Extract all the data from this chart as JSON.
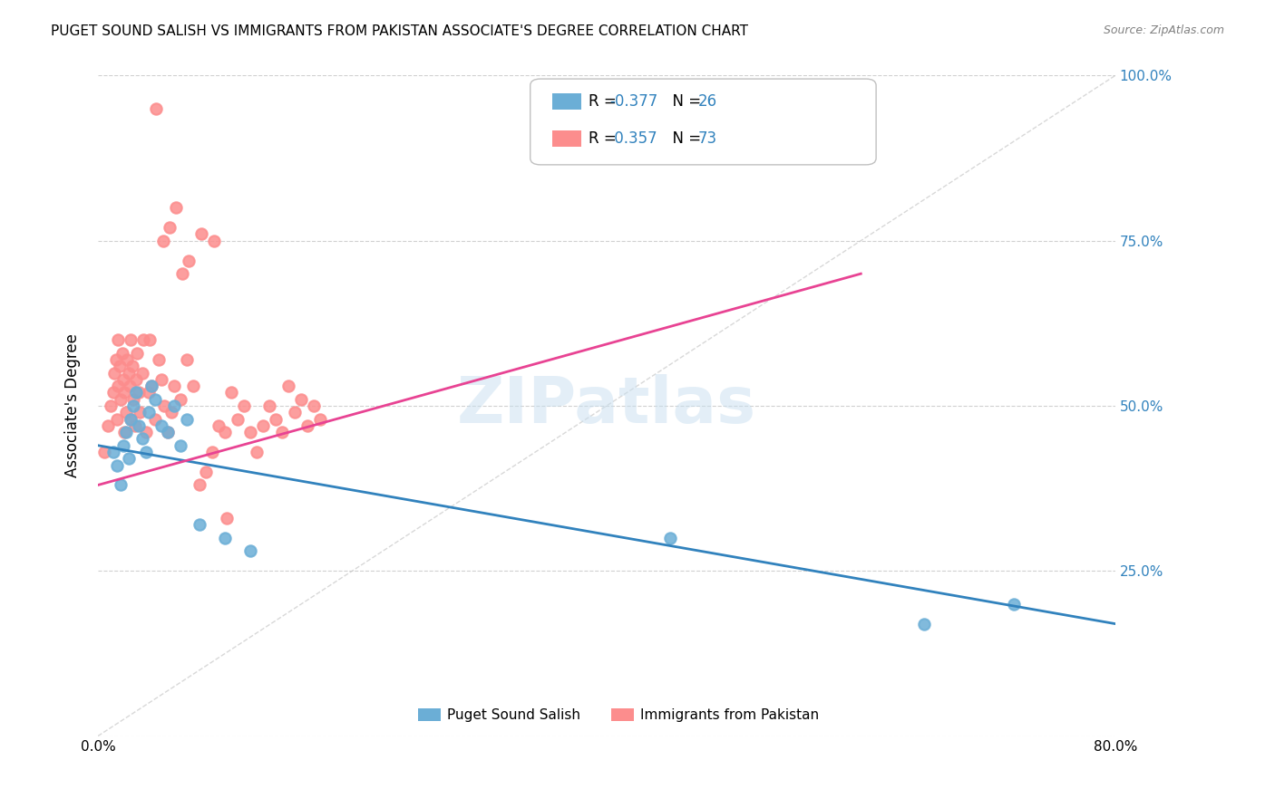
{
  "title": "PUGET SOUND SALISH VS IMMIGRANTS FROM PAKISTAN ASSOCIATE'S DEGREE CORRELATION CHART",
  "source": "Source: ZipAtlas.com",
  "ylabel": "Associate's Degree",
  "xlim": [
    0.0,
    80.0
  ],
  "ylim": [
    0.0,
    100.0
  ],
  "yticks": [
    0,
    25,
    50,
    75,
    100
  ],
  "ytick_labels": [
    "",
    "25.0%",
    "50.0%",
    "75.0%",
    "100.0%"
  ],
  "xticks": [
    0,
    20,
    40,
    60,
    80
  ],
  "xtick_labels": [
    "0.0%",
    "",
    "",
    "",
    "80.0%"
  ],
  "legend_R1": "-0.377",
  "legend_N1": "26",
  "legend_R2": "0.357",
  "legend_N2": "73",
  "blue_color": "#6baed6",
  "pink_color": "#fc8d8d",
  "blue_line_color": "#3182bd",
  "pink_line_color": "#e84393",
  "ref_line_color": "#c8c8c8",
  "grid_color": "#d0d0d0",
  "watermark": "ZIPatlas",
  "blue_scatter_x": [
    1.2,
    1.5,
    1.8,
    2.0,
    2.2,
    2.4,
    2.6,
    2.8,
    3.0,
    3.2,
    3.5,
    3.8,
    4.0,
    4.2,
    4.5,
    5.0,
    5.5,
    6.0,
    6.5,
    7.0,
    8.0,
    10.0,
    12.0,
    45.0,
    65.0,
    72.0
  ],
  "blue_scatter_y": [
    43,
    41,
    38,
    44,
    46,
    42,
    48,
    50,
    52,
    47,
    45,
    43,
    49,
    53,
    51,
    47,
    46,
    50,
    44,
    48,
    32,
    30,
    28,
    30,
    17,
    20
  ],
  "pink_scatter_x": [
    0.5,
    0.8,
    1.0,
    1.2,
    1.3,
    1.4,
    1.5,
    1.55,
    1.6,
    1.7,
    1.8,
    1.9,
    2.0,
    2.05,
    2.1,
    2.2,
    2.3,
    2.4,
    2.5,
    2.55,
    2.6,
    2.7,
    2.8,
    2.9,
    3.0,
    3.1,
    3.2,
    3.3,
    3.5,
    3.6,
    3.8,
    4.0,
    4.2,
    4.5,
    4.8,
    5.0,
    5.2,
    5.5,
    5.8,
    6.0,
    6.5,
    7.0,
    7.5,
    8.0,
    8.5,
    9.0,
    9.5,
    10.0,
    10.5,
    11.0,
    11.5,
    12.0,
    12.5,
    13.0,
    13.5,
    14.0,
    14.5,
    15.0,
    15.5,
    16.0,
    16.5,
    17.0,
    17.5,
    4.1,
    4.6,
    5.1,
    5.6,
    6.1,
    6.6,
    7.1,
    8.1,
    9.1,
    10.1
  ],
  "pink_scatter_y": [
    43,
    47,
    50,
    52,
    55,
    57,
    48,
    60,
    53,
    56,
    51,
    58,
    54,
    46,
    52,
    49,
    57,
    55,
    53,
    60,
    48,
    56,
    51,
    47,
    54,
    58,
    52,
    49,
    55,
    60,
    46,
    52,
    53,
    48,
    57,
    54,
    50,
    46,
    49,
    53,
    51,
    57,
    53,
    38,
    40,
    43,
    47,
    46,
    52,
    48,
    50,
    46,
    43,
    47,
    50,
    48,
    46,
    53,
    49,
    51,
    47,
    50,
    48,
    60,
    95,
    75,
    77,
    80,
    70,
    72,
    76,
    75,
    33
  ],
  "blue_trend_x": [
    0,
    80
  ],
  "blue_trend_y": [
    44,
    17
  ],
  "pink_trend_x": [
    0,
    60
  ],
  "pink_trend_y": [
    38,
    70
  ],
  "ref_line_x": [
    0,
    80
  ],
  "ref_line_y": [
    0,
    100
  ]
}
